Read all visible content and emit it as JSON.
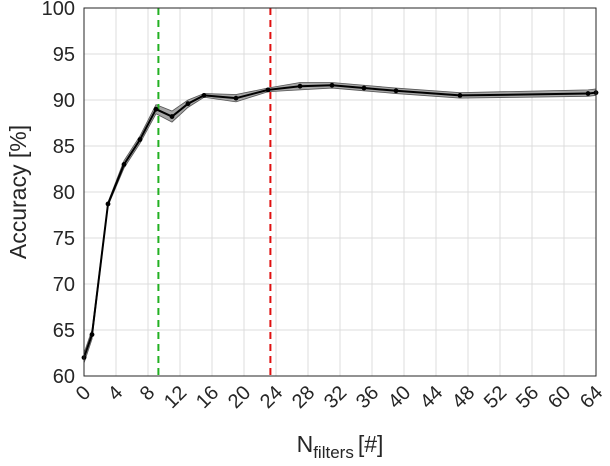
{
  "chart_data": {
    "type": "line",
    "title": "",
    "xlabel_main": "N",
    "xlabel_sub": "filters",
    "xlabel_unit": "[#]",
    "ylabel": "Accuracy [%]",
    "xlim": [
      0,
      64
    ],
    "ylim": [
      60,
      100
    ],
    "x_ticks": [
      0,
      4,
      8,
      12,
      16,
      20,
      24,
      28,
      32,
      36,
      40,
      44,
      48,
      52,
      56,
      60,
      64
    ],
    "y_ticks": [
      60,
      65,
      70,
      75,
      80,
      85,
      90,
      95,
      100
    ],
    "grid": true,
    "series": [
      {
        "x": [
          0,
          1,
          3,
          5,
          7,
          9,
          11,
          13,
          15,
          19,
          23,
          27,
          31,
          35,
          39,
          47,
          63,
          64
        ],
        "y": [
          62.0,
          64.5,
          78.7,
          83.0,
          85.7,
          89.0,
          88.2,
          89.6,
          90.5,
          90.2,
          91.1,
          91.5,
          91.6,
          91.3,
          91.0,
          90.5,
          90.7,
          90.8
        ],
        "upper": [
          62.5,
          65.0,
          78.9,
          83.4,
          86.1,
          89.5,
          88.8,
          90.0,
          90.7,
          90.6,
          91.3,
          91.9,
          91.9,
          91.6,
          91.3,
          90.8,
          91.1,
          91.2
        ],
        "lower": [
          61.4,
          64.0,
          78.5,
          82.6,
          85.3,
          88.5,
          87.6,
          89.2,
          90.3,
          89.8,
          90.9,
          91.1,
          91.3,
          91.0,
          90.7,
          90.2,
          90.4,
          90.5
        ],
        "line_color": "#000000",
        "band_color": "#a6a6a6"
      }
    ],
    "reference_lines": [
      {
        "x": 9.3,
        "color": "#22b022",
        "style": "dashed"
      },
      {
        "x": 23.3,
        "color": "#e01010",
        "style": "dashed"
      }
    ]
  }
}
